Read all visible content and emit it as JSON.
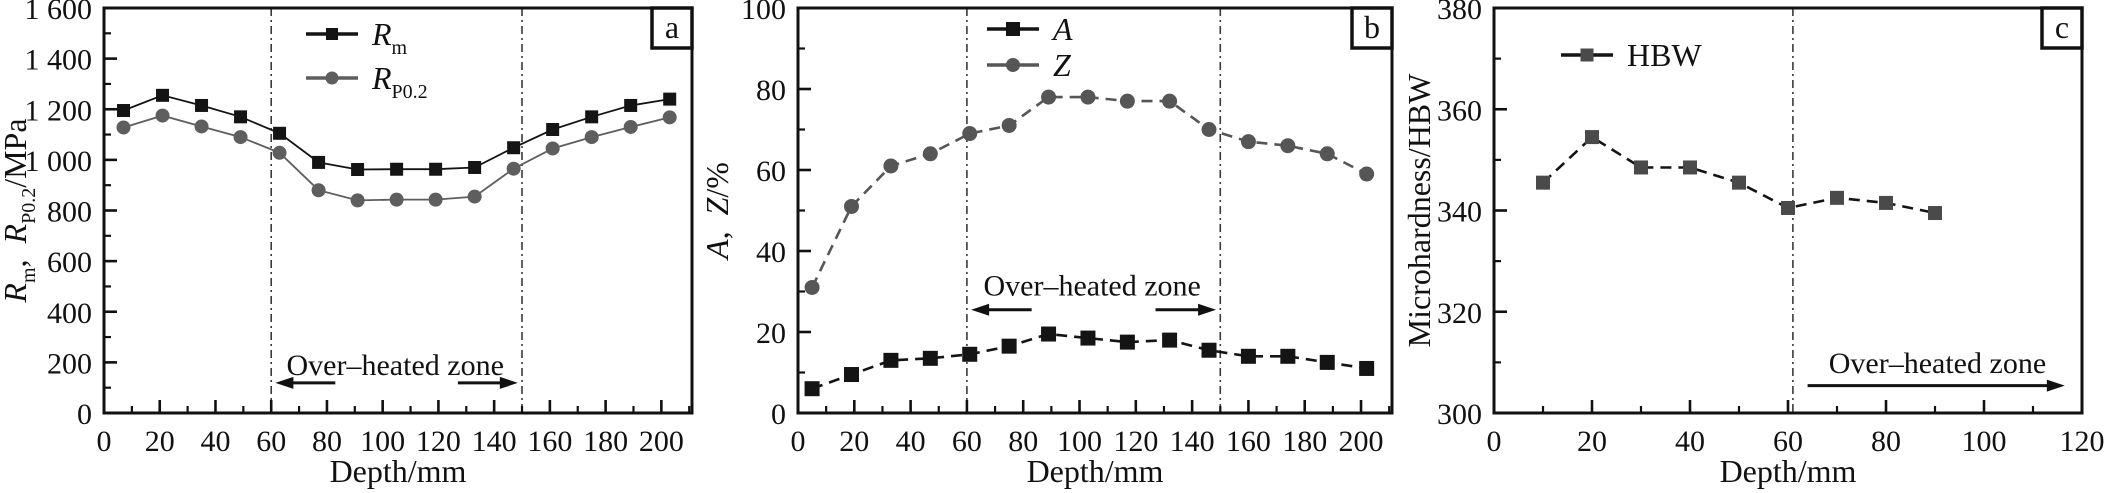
{
  "chart_data": [
    {
      "type": "line",
      "panel_label": "a",
      "xlabel": "Depth/mm",
      "ylabel_segments": [
        {
          "t": "R",
          "i": 1
        },
        {
          "t": "m",
          "s": 1
        },
        {
          "t": ",  "
        },
        {
          "t": "R",
          "i": 1
        },
        {
          "t": "P0.2",
          "s": 1
        },
        {
          "t": "/MPa"
        }
      ],
      "xlim": [
        0,
        211
      ],
      "ylim": [
        0,
        1600
      ],
      "xticks": {
        "values": [
          0,
          20,
          40,
          60,
          80,
          100,
          120,
          140,
          160,
          180,
          200
        ],
        "labels": [
          "0",
          "20",
          "40",
          "60",
          "80",
          "100",
          "120",
          "140",
          "160",
          "180",
          "200"
        ],
        "minor_step": 10
      },
      "yticks": {
        "values": [
          0,
          200,
          400,
          600,
          800,
          1000,
          1200,
          1400,
          1600
        ],
        "labels": [
          "0",
          "200",
          "400",
          "600",
          "800",
          "1 000",
          "1 200",
          "1 400",
          "1 600"
        ],
        "minor_step": 100
      },
      "series": [
        {
          "name": "Rm",
          "label_segments": [
            {
              "t": "R",
              "i": 1
            },
            {
              "t": "m",
              "s": 1
            }
          ],
          "marker": "square",
          "msize": 13,
          "color": "#141414",
          "marker_color": "#141414",
          "dash": "",
          "width": 1.8,
          "x": [
            7,
            21,
            35,
            49,
            63,
            77,
            91,
            105,
            119,
            133,
            147,
            161,
            175,
            189,
            203
          ],
          "y": [
            1195,
            1255,
            1215,
            1170,
            1105,
            990,
            962,
            963,
            963,
            970,
            1048,
            1120,
            1170,
            1215,
            1240
          ]
        },
        {
          "name": "RP0.2",
          "label_segments": [
            {
              "t": "R",
              "i": 1
            },
            {
              "t": "P0.2",
              "s": 1
            }
          ],
          "marker": "circle",
          "msize": 14,
          "color": "#5e5e5e",
          "marker_color": "#5e5e5e",
          "dash": "",
          "width": 1.8,
          "x": [
            7,
            21,
            35,
            49,
            63,
            77,
            91,
            105,
            119,
            133,
            147,
            161,
            175,
            189,
            203
          ],
          "y": [
            1128,
            1175,
            1132,
            1090,
            1028,
            880,
            840,
            843,
            843,
            855,
            965,
            1045,
            1090,
            1130,
            1168
          ]
        }
      ],
      "vlines": [
        60,
        150
      ],
      "annotation": {
        "text": "Over–heated zone",
        "x": 104.5,
        "y": 150,
        "arrows": [
          {
            "x1": 83,
            "x2": 61.5,
            "y": 119
          },
          {
            "x1": 127,
            "x2": 148.5,
            "y": 119
          }
        ]
      }
    },
    {
      "type": "line",
      "panel_label": "b",
      "xlabel": "Depth/mm",
      "ylabel_segments": [
        {
          "t": "A",
          "i": 1
        },
        {
          "t": ",  "
        },
        {
          "t": "Z",
          "i": 1
        },
        {
          "t": "/%"
        }
      ],
      "xlim": [
        0,
        211
      ],
      "ylim": [
        0,
        100
      ],
      "xticks": {
        "values": [
          0,
          20,
          40,
          60,
          80,
          100,
          120,
          140,
          160,
          180,
          200
        ],
        "labels": [
          "0",
          "20",
          "40",
          "60",
          "80",
          "100",
          "120",
          "140",
          "160",
          "180",
          "200"
        ],
        "minor_step": 10
      },
      "yticks": {
        "values": [
          0,
          20,
          40,
          60,
          80,
          100
        ],
        "labels": [
          "0",
          "20",
          "40",
          "60",
          "80",
          "100"
        ],
        "minor_step": 10
      },
      "series": [
        {
          "name": "A",
          "label_segments": [
            {
              "t": "A",
              "i": 1
            }
          ],
          "marker": "square",
          "msize": 15,
          "color": "#141414",
          "marker_color": "#141414",
          "dash": "11 7",
          "width": 2.6,
          "x": [
            5,
            19,
            33,
            47,
            61,
            75,
            89,
            103,
            117,
            132,
            146,
            160,
            174,
            188,
            202
          ],
          "y": [
            6,
            9.5,
            13,
            13.5,
            14.5,
            16.5,
            19.5,
            18.5,
            17.5,
            18,
            15.5,
            14,
            14,
            12.5,
            11
          ]
        },
        {
          "name": "Z",
          "label_segments": [
            {
              "t": "Z",
              "i": 1
            }
          ],
          "marker": "circle",
          "msize": 15,
          "color": "#565656",
          "marker_color": "#565656",
          "dash": "11 7",
          "width": 2.6,
          "x": [
            5,
            19,
            33,
            47,
            61,
            75,
            89,
            103,
            117,
            132,
            146,
            160,
            174,
            188,
            202
          ],
          "y": [
            31,
            51,
            61,
            64,
            69,
            71,
            78,
            78,
            77,
            77,
            70,
            67,
            66,
            64,
            59
          ]
        }
      ],
      "vlines": [
        60,
        150
      ],
      "annotation": {
        "text": "Over–heated zone",
        "x": 104.5,
        "y": 29,
        "arrows": [
          {
            "x1": 83,
            "x2": 61.5,
            "y": 25.5
          },
          {
            "x1": 127,
            "x2": 148.5,
            "y": 25.5
          }
        ]
      }
    },
    {
      "type": "line",
      "panel_label": "c",
      "xlabel": "Depth/mm",
      "ylabel_segments": [
        {
          "t": "Microhardness/HBW"
        }
      ],
      "xlim": [
        0,
        120
      ],
      "ylim": [
        300,
        380
      ],
      "xticks": {
        "values": [
          0,
          20,
          40,
          60,
          80,
          100,
          120
        ],
        "labels": [
          "0",
          "20",
          "40",
          "60",
          "80",
          "100",
          "120"
        ],
        "minor_step": 10
      },
      "yticks": {
        "values": [
          300,
          320,
          340,
          360,
          380
        ],
        "labels": [
          "300",
          "320",
          "340",
          "360",
          "380"
        ],
        "minor_step": 10
      },
      "series": [
        {
          "name": "HBW",
          "label_segments": [
            {
              "t": "HBW"
            }
          ],
          "marker": "square",
          "msize": 14,
          "color": "#141414",
          "marker_color": "#4a4a4a",
          "dash": "11 7",
          "width": 2.6,
          "x": [
            10,
            20,
            30,
            40,
            50,
            60,
            70,
            80,
            90
          ],
          "y": [
            345.5,
            354.5,
            348.5,
            348.5,
            345.5,
            340.5,
            342.5,
            341.5,
            339.5
          ]
        }
      ],
      "vlines": [
        61
      ],
      "annotation": {
        "text": "Over–heated zone",
        "x": 90.5,
        "y": 307.9,
        "arrows": [
          {
            "x1": 64,
            "x2": 116.5,
            "y": 305.4
          }
        ]
      }
    }
  ]
}
